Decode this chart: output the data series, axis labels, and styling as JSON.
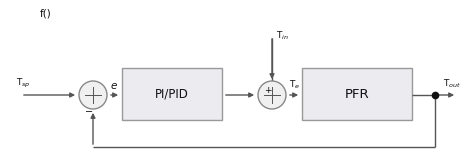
{
  "fig_width": 4.74,
  "fig_height": 1.63,
  "dpi": 100,
  "bg_color": "#ffffff",
  "line_color": "#555555",
  "box_color": "#ebebf0",
  "box_edge_color": "#999999",
  "circle_color": "#f0f0f0",
  "circle_edge_color": "#888888",
  "dot_color": "#111111",
  "text_color": "#111111",
  "labels": {
    "Tsp": "T$_{sp}$",
    "e": "$e$",
    "pipid": "PI/PID",
    "Tin": "T$_{in}$",
    "plus": "+",
    "Te": "T$_e$",
    "pfr": "PFR",
    "Tout": "T$_{out}$",
    "minus": "−",
    "title": "f()"
  }
}
